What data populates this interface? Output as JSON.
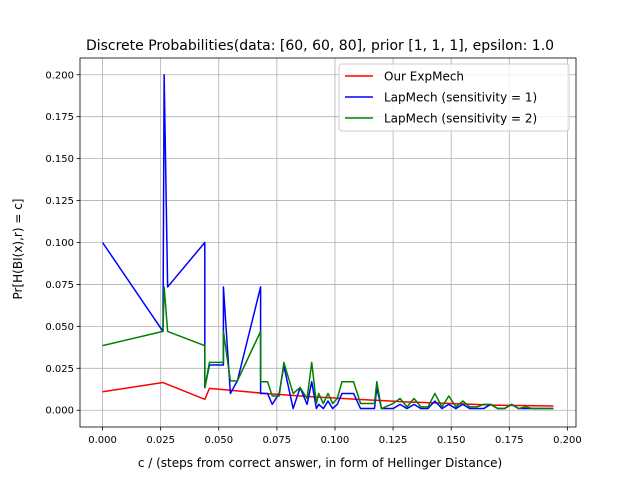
{
  "chart_data": {
    "type": "line",
    "title": "Discrete Probabilities(data: [60, 60, 80], prior [1, 1, 1], epsilon: 1.0",
    "xlabel": "c / (steps from correct answer, in form of Hellinger Distance)",
    "ylabel": "Pr[H(BI(x),r) = c]",
    "xlim": [
      -0.0097,
      0.2037
    ],
    "ylim": [
      -0.01,
      0.21
    ],
    "xticks": [
      0.0,
      0.025,
      0.05,
      0.075,
      0.1,
      0.125,
      0.15,
      0.175,
      0.2
    ],
    "xtick_labels": [
      "0.000",
      "0.025",
      "0.050",
      "0.075",
      "0.100",
      "0.125",
      "0.150",
      "0.175",
      "0.200"
    ],
    "yticks": [
      0.0,
      0.025,
      0.05,
      0.075,
      0.1,
      0.125,
      0.15,
      0.175,
      0.2
    ],
    "ytick_labels": [
      "0.000",
      "0.025",
      "0.050",
      "0.075",
      "0.100",
      "0.125",
      "0.150",
      "0.175",
      "0.200"
    ],
    "grid": true,
    "legend_position": "upper right",
    "series": [
      {
        "name": "Our ExpMech",
        "color": "#ff0000",
        "x": [
          0.0,
          0.026,
          0.044,
          0.046,
          0.07,
          0.09,
          0.11,
          0.13,
          0.15,
          0.17,
          0.194
        ],
        "y": [
          0.011,
          0.0165,
          0.0065,
          0.013,
          0.01,
          0.008,
          0.0065,
          0.005,
          0.004,
          0.003,
          0.0025
        ]
      },
      {
        "name": "LapMech (sensitivity = 1)",
        "color": "#0000ff",
        "x": [
          0.0,
          0.026,
          0.0265,
          0.028,
          0.044,
          0.044,
          0.046,
          0.052,
          0.052,
          0.055,
          0.058,
          0.068,
          0.068,
          0.071,
          0.073,
          0.076,
          0.078,
          0.082,
          0.085,
          0.088,
          0.09,
          0.092,
          0.093,
          0.095,
          0.097,
          0.099,
          0.101,
          0.103,
          0.105,
          0.108,
          0.111,
          0.114,
          0.117,
          0.118,
          0.12,
          0.125,
          0.128,
          0.131,
          0.134,
          0.137,
          0.14,
          0.143,
          0.146,
          0.149,
          0.152,
          0.155,
          0.158,
          0.161,
          0.164,
          0.167,
          0.17,
          0.173,
          0.176,
          0.179,
          0.182,
          0.185,
          0.188,
          0.191,
          0.194
        ],
        "y": [
          0.1,
          0.047,
          0.2,
          0.0735,
          0.1,
          0.0135,
          0.027,
          0.027,
          0.0735,
          0.01,
          0.0175,
          0.0735,
          0.01,
          0.01,
          0.0035,
          0.01,
          0.0265,
          0.001,
          0.0135,
          0.0035,
          0.017,
          0.001,
          0.0035,
          0.001,
          0.0055,
          0.001,
          0.0035,
          0.01,
          0.01,
          0.01,
          0.001,
          0.001,
          0.001,
          0.0135,
          0.001,
          0.001,
          0.0035,
          0.001,
          0.0035,
          0.001,
          0.001,
          0.0055,
          0.001,
          0.0035,
          0.001,
          0.0035,
          0.001,
          0.001,
          0.001,
          0.0035,
          0.001,
          0.001,
          0.0035,
          0.001,
          0.001,
          0.001,
          0.001,
          0.001,
          0.001
        ]
      },
      {
        "name": "LapMech (sensitivity = 2)",
        "color": "#008000",
        "x": [
          0.0,
          0.026,
          0.0265,
          0.028,
          0.044,
          0.044,
          0.046,
          0.052,
          0.052,
          0.055,
          0.058,
          0.068,
          0.068,
          0.071,
          0.073,
          0.076,
          0.078,
          0.082,
          0.085,
          0.088,
          0.09,
          0.092,
          0.093,
          0.095,
          0.097,
          0.099,
          0.101,
          0.103,
          0.105,
          0.108,
          0.111,
          0.114,
          0.117,
          0.118,
          0.12,
          0.125,
          0.128,
          0.131,
          0.134,
          0.137,
          0.14,
          0.143,
          0.146,
          0.149,
          0.152,
          0.155,
          0.158,
          0.161,
          0.164,
          0.167,
          0.17,
          0.173,
          0.176,
          0.179,
          0.182,
          0.185,
          0.188,
          0.191,
          0.194
        ],
        "y": [
          0.0385,
          0.047,
          0.0735,
          0.047,
          0.0385,
          0.0135,
          0.0285,
          0.0285,
          0.047,
          0.0175,
          0.0175,
          0.047,
          0.017,
          0.017,
          0.0085,
          0.0085,
          0.0285,
          0.01,
          0.0135,
          0.007,
          0.0285,
          0.004,
          0.01,
          0.004,
          0.01,
          0.004,
          0.007,
          0.017,
          0.017,
          0.017,
          0.004,
          0.004,
          0.004,
          0.017,
          0.001,
          0.004,
          0.007,
          0.002,
          0.007,
          0.002,
          0.002,
          0.01,
          0.002,
          0.0085,
          0.002,
          0.0055,
          0.002,
          0.002,
          0.0035,
          0.0035,
          0.001,
          0.001,
          0.0035,
          0.001,
          0.002,
          0.001,
          0.001,
          0.001,
          0.001
        ]
      }
    ]
  }
}
